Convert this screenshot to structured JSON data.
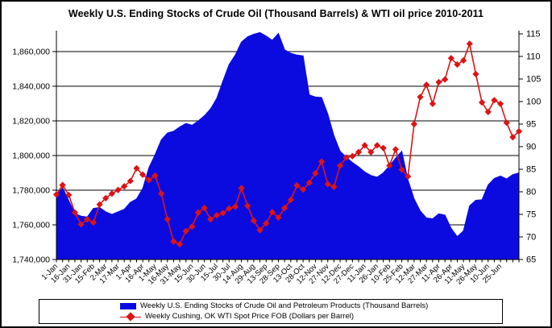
{
  "title": "Weekly U.S. Ending Stocks of Crude Oil  (Thousand Barrels) & WTI oil price 2010-2011",
  "colors": {
    "stocks_area": "#0b0be0",
    "price_line": "#dc1414",
    "axis": "#000000",
    "background": "#ffffff"
  },
  "chart_data": {
    "type": "area+line",
    "title": "Weekly U.S. Ending Stocks of Crude Oil  (Thousand Barrels) & WTI oil price 2010-2011",
    "grid": true,
    "legend_position": "bottom",
    "categories": [
      "1-Jan",
      "16-Jan",
      "31-Jan",
      "15-Feb",
      "2-Mar",
      "17-Mar",
      "1-Apr",
      "16-Apr",
      "1-May",
      "16-May",
      "31-May",
      "15-Jun",
      "30-Jun",
      "15-Jul",
      "30-Jul",
      "14-Aug",
      "29-Aug",
      "13-Sep",
      "28-Sep",
      "13-Oct",
      "28-Oct",
      "12-Nov",
      "27-Nov",
      "12-Dec",
      "27-Dec",
      "11-Jan",
      "26-Jan",
      "10-Feb",
      "25-Feb",
      "12-Mar",
      "27-Mar",
      "11-Apr",
      "26-Apr",
      "11-May",
      "26-May",
      "10-Jun",
      "25-Jun"
    ],
    "left_axis": {
      "title": "",
      "min": 1740000,
      "max": 1870000,
      "tick_step": 20000,
      "tick_labels": [
        "1,740,000",
        "1,760,000",
        "1,780,000",
        "1,800,000",
        "1,820,000",
        "1,840,000",
        "1,860,000"
      ]
    },
    "right_axis": {
      "title": "",
      "min": 65,
      "max": 115,
      "tick_step": 5,
      "tick_labels": [
        "65",
        "70",
        "75",
        "80",
        "85",
        "90",
        "95",
        "100",
        "105",
        "110",
        "115"
      ]
    },
    "series": [
      {
        "name": "Weekly U.S. Ending Stocks of Crude Oil and Petroleum Products  (Thousand Barrels)",
        "type": "area",
        "axis": "left",
        "values": [
          1777000,
          1781500,
          1774000,
          1766500,
          1765000,
          1764500,
          1769500,
          1770000,
          1767500,
          1766000,
          1767500,
          1769000,
          1773000,
          1775000,
          1781000,
          1793000,
          1800500,
          1809000,
          1813000,
          1814000,
          1816500,
          1818500,
          1817500,
          1820000,
          1823000,
          1827000,
          1833000,
          1843000,
          1852500,
          1858000,
          1865500,
          1868500,
          1870000,
          1871000,
          1869000,
          1866500,
          1870500,
          1861000,
          1859000,
          1858000,
          1857500,
          1835000,
          1833800,
          1833500,
          1824000,
          1811500,
          1802500,
          1799000,
          1796000,
          1793500,
          1790500,
          1788500,
          1787500,
          1790000,
          1794000,
          1798500,
          1802500,
          1786000,
          1775000,
          1768000,
          1764000,
          1763500,
          1766400,
          1765600,
          1758000,
          1753200,
          1756500,
          1771000,
          1774200,
          1774500,
          1783000,
          1786800,
          1788200,
          1786500,
          1789000,
          1790000
        ]
      },
      {
        "name": "Weekly Cushing, OK WTI Spot Price FOB  (Dollars per Barrel)",
        "type": "line",
        "axis": "right",
        "values": [
          79.4,
          81.5,
          79.3,
          75.4,
          72.8,
          73.9,
          73.2,
          77.2,
          78.6,
          79.6,
          80.4,
          81.2,
          82.4,
          85.2,
          83.8,
          82.6,
          83.6,
          79.6,
          73.9,
          69.0,
          68.4,
          71.3,
          72.3,
          75.4,
          76.4,
          73.9,
          74.8,
          75.3,
          76.3,
          76.7,
          80.8,
          76.9,
          73.6,
          71.5,
          73.0,
          75.5,
          74.3,
          76.4,
          78.2,
          81.4,
          80.5,
          82.0,
          84.1,
          86.7,
          81.7,
          81.1,
          85.8,
          87.6,
          87.9,
          88.8,
          90.3,
          88.8,
          90.3,
          89.7,
          85.8,
          89.4,
          84.9,
          83.4,
          95.0,
          101.0,
          103.7,
          99.5,
          104.3,
          104.9,
          109.6,
          108.2,
          109.1,
          112.8,
          106.1,
          99.8,
          97.7,
          100.3,
          99.5,
          95.3,
          92.1,
          93.4
        ]
      }
    ]
  },
  "legend": {
    "stocks_label": "Weekly U.S. Ending Stocks of Crude Oil and Petroleum Products  (Thousand Barrels)",
    "price_label": "Weekly Cushing, OK WTI Spot Price FOB  (Dollars per Barrel)"
  }
}
